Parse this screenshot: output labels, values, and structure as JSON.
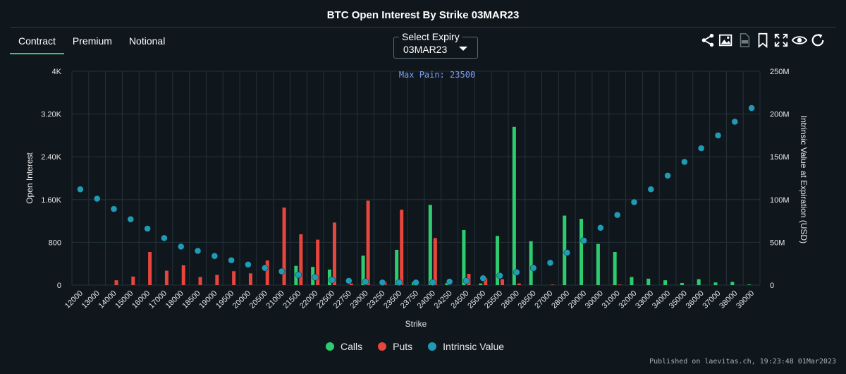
{
  "header": {
    "title": "BTC Open Interest By Strike 03MAR23"
  },
  "tabs": [
    {
      "label": "Contract",
      "active": true
    },
    {
      "label": "Premium",
      "active": false
    },
    {
      "label": "Notional",
      "active": false
    }
  ],
  "expiry": {
    "label": "Select Expiry",
    "value": "03MAR23"
  },
  "toolbar": [
    "share-icon",
    "image-icon",
    "csv-icon",
    "bookmark-icon",
    "fullscreen-icon",
    "eye-icon",
    "refresh-icon"
  ],
  "colors": {
    "calls": "#2ecc71",
    "puts": "#e8453c",
    "intrinsic": "#1f9bb5",
    "max_pain": "#7f9cf5",
    "grid": "#26323b"
  },
  "chart_data": {
    "type": "bar",
    "xlabel": "Strike",
    "ylabel": "Open Interest",
    "y2label": "Intrinsic Value at Expiration (USD)",
    "ylim": [
      0,
      4000
    ],
    "y2lim": [
      0,
      250000000
    ],
    "yticks": [
      "0",
      "800",
      "1.60K",
      "2.40K",
      "3.20K",
      "4K"
    ],
    "y2ticks": [
      "0",
      "50M",
      "100M",
      "150M",
      "200M",
      "250M"
    ],
    "max_pain_label": "Max Pain: 23500",
    "categories": [
      "12000",
      "13000",
      "14000",
      "15000",
      "16000",
      "17000",
      "18000",
      "18500",
      "19000",
      "19500",
      "20000",
      "20500",
      "21000",
      "21500",
      "22000",
      "22500",
      "22750",
      "23000",
      "23250",
      "23500",
      "23750",
      "24000",
      "24250",
      "24500",
      "25000",
      "25500",
      "26000",
      "26500",
      "27000",
      "28000",
      "29000",
      "30000",
      "31000",
      "32000",
      "33000",
      "34000",
      "35000",
      "36000",
      "37000",
      "38000",
      "39000"
    ],
    "series": [
      {
        "name": "Calls",
        "type": "bar",
        "values": [
          0,
          0,
          0,
          0,
          0,
          0,
          0,
          0,
          0,
          0,
          0,
          0,
          0,
          360,
          340,
          290,
          0,
          550,
          0,
          660,
          60,
          1500,
          40,
          1030,
          30,
          920,
          2960,
          820,
          0,
          1300,
          1240,
          770,
          620,
          150,
          120,
          90,
          40,
          110,
          50,
          60,
          10
        ]
      },
      {
        "name": "Puts",
        "type": "bar",
        "values": [
          0,
          0,
          90,
          160,
          620,
          270,
          370,
          150,
          190,
          260,
          220,
          460,
          1450,
          950,
          850,
          1170,
          30,
          1580,
          60,
          1410,
          0,
          880,
          0,
          210,
          130,
          110,
          30,
          0,
          10,
          0,
          0,
          0,
          10,
          0,
          0,
          0,
          0,
          0,
          0,
          0,
          0
        ]
      },
      {
        "name": "Intrinsic Value",
        "type": "scatter",
        "values": [
          112000000,
          101000000,
          89000000,
          77000000,
          66000000,
          55000000,
          45000000,
          40000000,
          34000000,
          29000000,
          24000000,
          20000000,
          16000000,
          12000000,
          9000000,
          6000000,
          5000000,
          4000000,
          3000000,
          3000000,
          3000000,
          3000000,
          4000000,
          5000000,
          8000000,
          11000000,
          15000000,
          20000000,
          26000000,
          38000000,
          52000000,
          67000000,
          82000000,
          97000000,
          112000000,
          128000000,
          144000000,
          160000000,
          175000000,
          191000000,
          207000000
        ]
      }
    ]
  },
  "legend": [
    {
      "label": "Calls",
      "color": "#2ecc71"
    },
    {
      "label": "Puts",
      "color": "#e8453c"
    },
    {
      "label": "Intrinsic Value",
      "color": "#1f9bb5"
    }
  ],
  "footer": {
    "published": "Published on laevitas.ch, 19:23:48 01Mar2023"
  }
}
